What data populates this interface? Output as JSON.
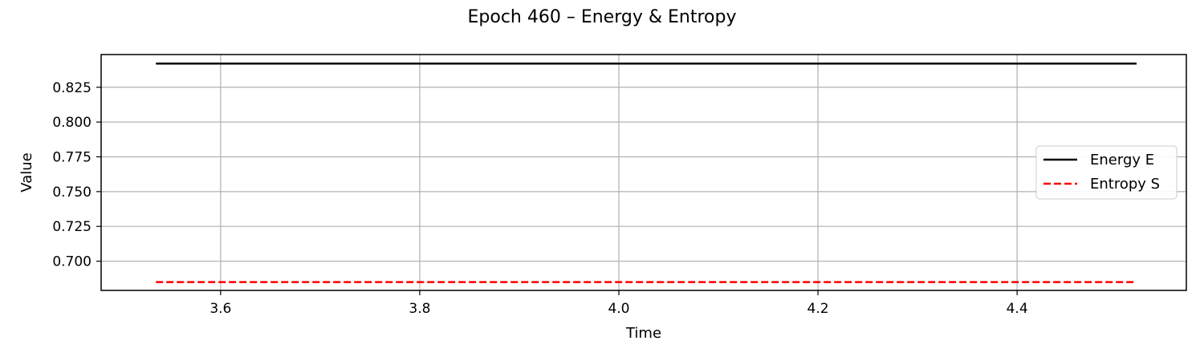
{
  "chart_data": {
    "type": "line",
    "title": "Epoch 460 – Energy & Entropy",
    "xlabel": "Time",
    "ylabel": "Value",
    "xlim": [
      3.48,
      4.57
    ],
    "ylim": [
      0.679,
      0.8485
    ],
    "xticks": [
      3.6,
      3.8,
      4.0,
      4.2,
      4.4
    ],
    "xtick_labels": [
      "3.6",
      "3.8",
      "4.0",
      "4.2",
      "4.4"
    ],
    "yticks": [
      0.7,
      0.725,
      0.75,
      0.775,
      0.8,
      0.825
    ],
    "ytick_labels": [
      "0.700",
      "0.725",
      "0.750",
      "0.775",
      "0.800",
      "0.825"
    ],
    "grid": true,
    "legend_position": "center-right",
    "series": [
      {
        "name": "Energy E",
        "color": "#000000",
        "style": "solid",
        "x": [
          3.535,
          4.52
        ],
        "y": [
          0.842,
          0.842
        ]
      },
      {
        "name": "Entropy S",
        "color": "#ff0000",
        "style": "dashed",
        "x": [
          3.535,
          4.52
        ],
        "y": [
          0.685,
          0.685
        ]
      }
    ]
  }
}
